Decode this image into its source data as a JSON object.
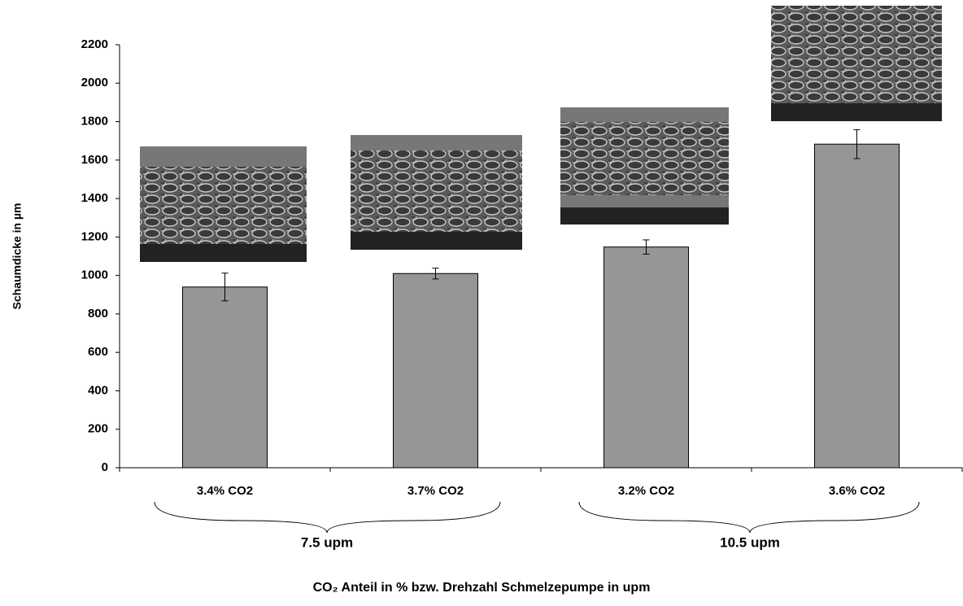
{
  "chart_data": {
    "type": "bar",
    "y_label": "Schaumdicke in µm",
    "x_label": "CO₂ Anteil in %  bzw. Drehzahl Schmelzepumpe in upm",
    "categories": [
      "3.4% CO2",
      "3.7% CO2",
      "3.2% CO2",
      "3.6% CO2"
    ],
    "groups": [
      "7.5 upm",
      "10.5 upm"
    ],
    "values": [
      940,
      1010,
      1148,
      1683
    ],
    "errors": [
      72,
      28,
      37,
      75
    ],
    "color": "#969696",
    "ylim": [
      0,
      2200
    ],
    "yticks": [
      0,
      200,
      400,
      600,
      800,
      1000,
      1200,
      1400,
      1600,
      1800,
      2000,
      2200
    ]
  }
}
